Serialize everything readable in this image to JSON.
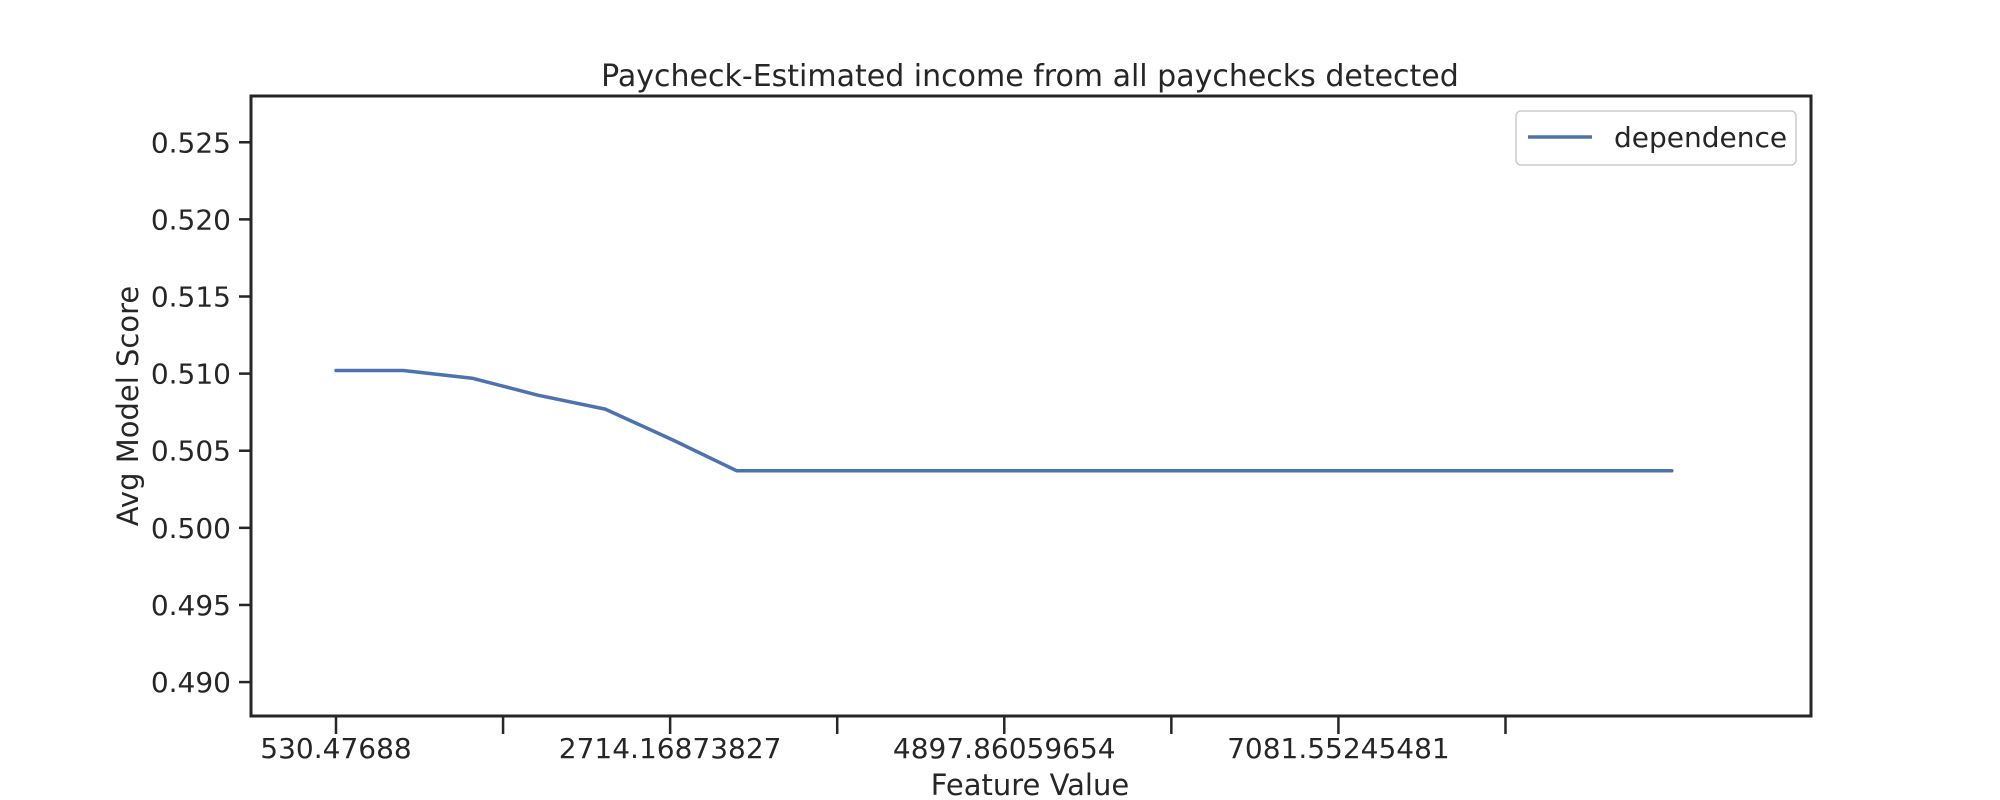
{
  "chart_data": {
    "type": "line",
    "title": "Paycheck-Estimated income from all paychecks detected",
    "xlabel": "Feature Value",
    "ylabel": "Avg Model Score",
    "xlim": [
      -25,
      10170
    ],
    "ylim": [
      0.4878,
      0.528
    ],
    "x_ticks": [
      {
        "value": 530.47688,
        "label": "530.47688"
      },
      {
        "value": 1622.3228,
        "label": ""
      },
      {
        "value": 2714.16873827,
        "label": "2714.16873827"
      },
      {
        "value": 3806.0146,
        "label": ""
      },
      {
        "value": 4897.86059654,
        "label": "4897.86059654"
      },
      {
        "value": 5989.7065,
        "label": ""
      },
      {
        "value": 7081.55245481,
        "label": "7081.55245481"
      },
      {
        "value": 8173.3984,
        "label": ""
      }
    ],
    "y_ticks": [
      0.49,
      0.495,
      0.5,
      0.505,
      0.51,
      0.515,
      0.52,
      0.525
    ],
    "y_tick_labels": [
      "0.490",
      "0.495",
      "0.500",
      "0.505",
      "0.510",
      "0.515",
      "0.520",
      "0.525"
    ],
    "series": [
      {
        "name": "dependence",
        "color": "#4c72b0",
        "x": [
          530.48,
          970,
          1420,
          1850,
          2290,
          2730,
          3150,
          3590,
          4020,
          4460,
          4900,
          5340,
          5770,
          6210,
          6640,
          7080,
          7520,
          7950,
          8390,
          8820,
          9260
        ],
        "y": [
          0.5102,
          0.5102,
          0.5097,
          0.5086,
          0.5077,
          0.5057,
          0.5037,
          0.5037,
          0.5037,
          0.5037,
          0.5037,
          0.5037,
          0.5037,
          0.5037,
          0.5037,
          0.5037,
          0.5037,
          0.5037,
          0.5037,
          0.5037,
          0.5037
        ]
      }
    ],
    "legend": {
      "position": "top-right",
      "entries": [
        "dependence"
      ]
    },
    "grid": false
  }
}
